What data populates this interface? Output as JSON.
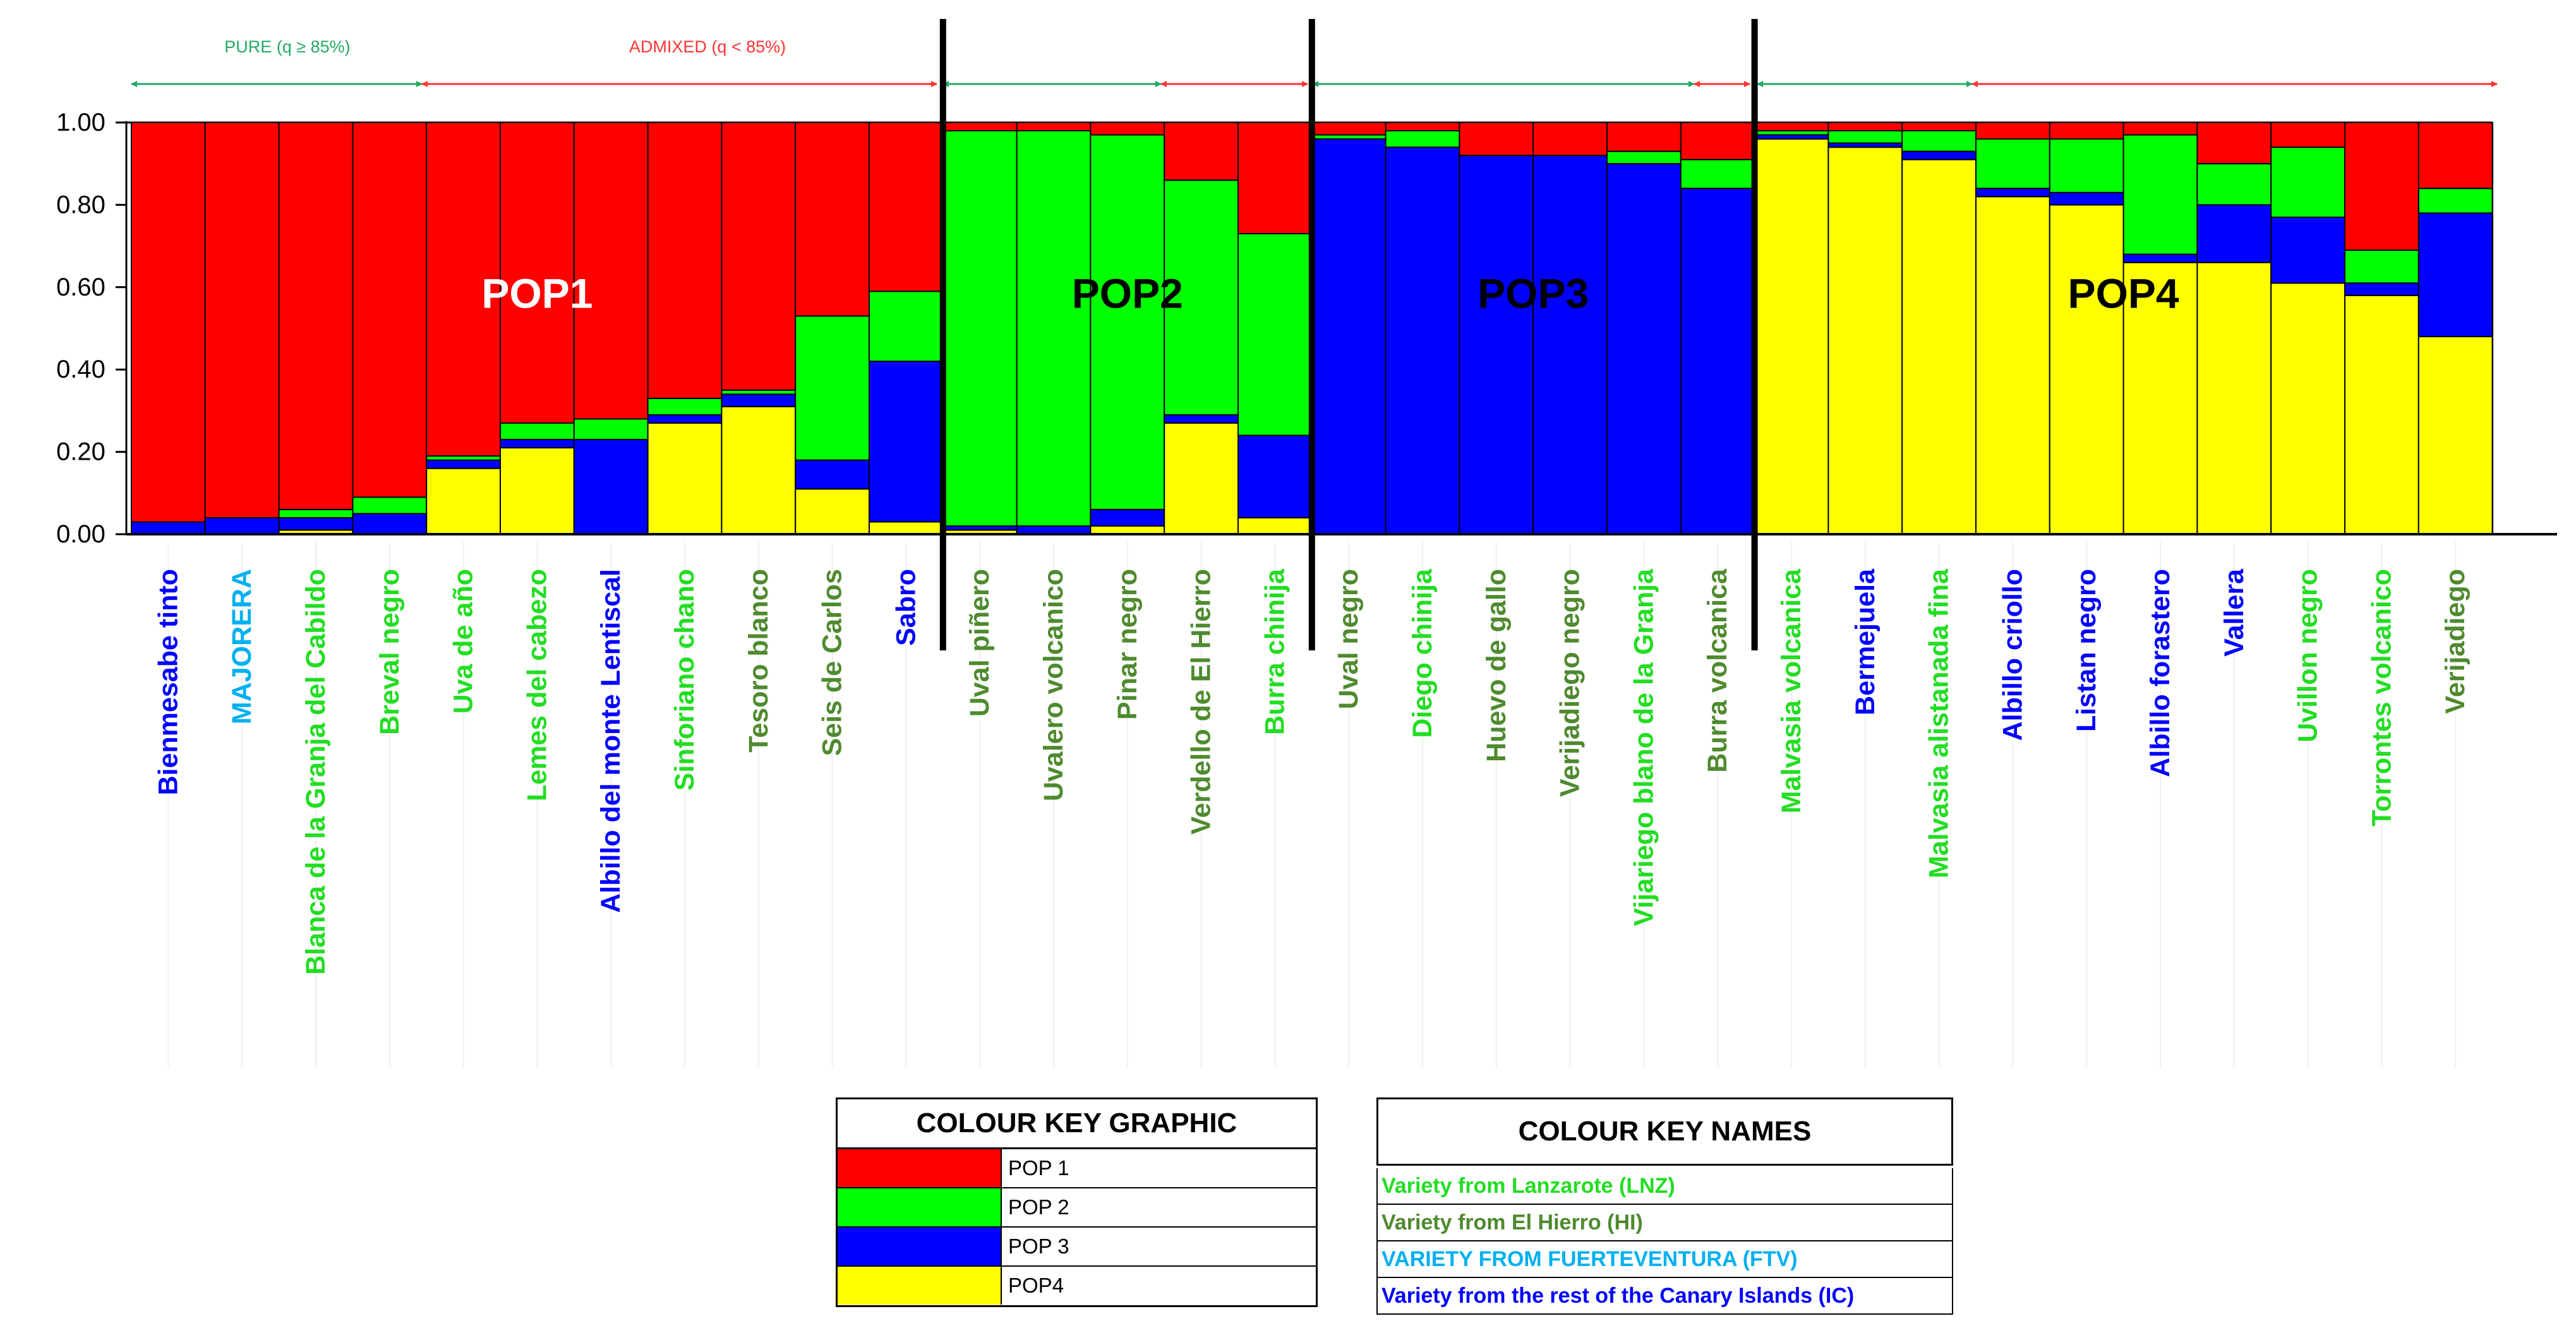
{
  "colors": {
    "pop1": "#ff0000",
    "pop2": "#00ff00",
    "pop3": "#0000ff",
    "pop4": "#ffff00",
    "lnz": "#22dd22",
    "hi": "#4e8a2e",
    "ftv": "#00b0f0",
    "ic": "#0000ff"
  },
  "chart_data": {
    "type": "bar",
    "stacked": true,
    "ylim": [
      0,
      1
    ],
    "yticks": [
      "0.00",
      "0.20",
      "0.40",
      "0.60",
      "0.80",
      "1.00"
    ],
    "series_names": [
      "POP4",
      "POP3",
      "POP2",
      "POP1"
    ],
    "categories": [
      {
        "name": "Bienmesabe tinto",
        "origin": "ic",
        "values": [
          0.0,
          0.03,
          0.0,
          0.97
        ]
      },
      {
        "name": "MAJORERA",
        "origin": "ftv",
        "values": [
          0.0,
          0.04,
          0.0,
          0.96
        ]
      },
      {
        "name": "Blanca de la Granja del Cabildo",
        "origin": "lnz",
        "values": [
          0.01,
          0.03,
          0.02,
          0.94
        ]
      },
      {
        "name": "Breval negro",
        "origin": "lnz",
        "values": [
          0.0,
          0.05,
          0.04,
          0.91
        ]
      },
      {
        "name": "Uva de año",
        "origin": "lnz",
        "values": [
          0.16,
          0.02,
          0.01,
          0.81
        ]
      },
      {
        "name": "Lemes del cabezo",
        "origin": "lnz",
        "values": [
          0.21,
          0.02,
          0.04,
          0.73
        ]
      },
      {
        "name": "Albillo del monte Lentiscal",
        "origin": "ic",
        "values": [
          0.0,
          0.23,
          0.05,
          0.72
        ]
      },
      {
        "name": "Sinforiano chano",
        "origin": "lnz",
        "values": [
          0.27,
          0.02,
          0.04,
          0.67
        ]
      },
      {
        "name": "Tesoro blanco",
        "origin": "hi",
        "values": [
          0.31,
          0.03,
          0.01,
          0.65
        ]
      },
      {
        "name": "Seis de Carlos",
        "origin": "hi",
        "values": [
          0.11,
          0.07,
          0.35,
          0.47
        ]
      },
      {
        "name": "Sabro",
        "origin": "ic",
        "values": [
          0.03,
          0.39,
          0.17,
          0.41
        ]
      },
      {
        "name": "Uval piñero",
        "origin": "hi",
        "values": [
          0.01,
          0.01,
          0.96,
          0.02
        ]
      },
      {
        "name": "Uvalero volcanico",
        "origin": "hi",
        "values": [
          0.0,
          0.02,
          0.96,
          0.02
        ]
      },
      {
        "name": "Pinar negro",
        "origin": "hi",
        "values": [
          0.02,
          0.04,
          0.91,
          0.03
        ]
      },
      {
        "name": "Verdello de El Hierro",
        "origin": "hi",
        "values": [
          0.27,
          0.02,
          0.57,
          0.14
        ]
      },
      {
        "name": "Burra chinija",
        "origin": "lnz",
        "values": [
          0.04,
          0.2,
          0.49,
          0.27
        ]
      },
      {
        "name": "Uval negro",
        "origin": "hi",
        "values": [
          0.0,
          0.96,
          0.01,
          0.03
        ]
      },
      {
        "name": "Diego chinija",
        "origin": "lnz",
        "values": [
          0.0,
          0.94,
          0.04,
          0.02
        ]
      },
      {
        "name": "Huevo de gallo",
        "origin": "hi",
        "values": [
          0.0,
          0.92,
          0.0,
          0.08
        ]
      },
      {
        "name": "Verijadiego negro",
        "origin": "hi",
        "values": [
          0.0,
          0.92,
          0.0,
          0.08
        ]
      },
      {
        "name": "Vijariego blano de la Granja",
        "origin": "lnz",
        "values": [
          0.0,
          0.9,
          0.03,
          0.07
        ]
      },
      {
        "name": "Burra volcanica",
        "origin": "hi",
        "values": [
          0.0,
          0.84,
          0.07,
          0.09
        ]
      },
      {
        "name": "Malvasia volcanica",
        "origin": "lnz",
        "values": [
          0.96,
          0.01,
          0.01,
          0.02
        ]
      },
      {
        "name": "Bermejuela",
        "origin": "ic",
        "values": [
          0.94,
          0.01,
          0.03,
          0.02
        ]
      },
      {
        "name": "Malvasia alistanada fina",
        "origin": "lnz",
        "values": [
          0.91,
          0.02,
          0.05,
          0.02
        ]
      },
      {
        "name": "Albillo criollo",
        "origin": "ic",
        "values": [
          0.82,
          0.02,
          0.12,
          0.04
        ]
      },
      {
        "name": "Listan negro",
        "origin": "ic",
        "values": [
          0.8,
          0.03,
          0.13,
          0.04
        ]
      },
      {
        "name": "Albillo forastero",
        "origin": "ic",
        "values": [
          0.66,
          0.02,
          0.29,
          0.03
        ]
      },
      {
        "name": "Vallera",
        "origin": "ic",
        "values": [
          0.66,
          0.14,
          0.1,
          0.1
        ]
      },
      {
        "name": "Uvillon negro",
        "origin": "lnz",
        "values": [
          0.61,
          0.16,
          0.17,
          0.06
        ]
      },
      {
        "name": "Torrontes volcanico",
        "origin": "lnz",
        "values": [
          0.58,
          0.03,
          0.08,
          0.31
        ]
      },
      {
        "name": "Verijadiego",
        "origin": "hi",
        "values": [
          0.48,
          0.3,
          0.06,
          0.16
        ]
      }
    ],
    "group_dividers_after": [
      10,
      15,
      21
    ],
    "pop_labels": [
      "POP1",
      "POP2",
      "POP3",
      "POP4"
    ],
    "annotations": {
      "pure": "PURE (q ≥ 85%)",
      "admixed": "ADMIXED (q < 85%)"
    }
  },
  "key_graphic": {
    "title": "COLOUR KEY GRAPHIC",
    "items": [
      "POP 1",
      "POP 2",
      "POP 3",
      "POP4"
    ]
  },
  "key_names": {
    "title": "COLOUR KEY NAMES",
    "items": [
      "Variety from Lanzarote (LNZ)",
      "Variety from El Hierro (HI)",
      "VARIETY FROM FUERTEVENTURA (FTV)",
      "Variety from the rest of the Canary Islands (IC)"
    ]
  }
}
